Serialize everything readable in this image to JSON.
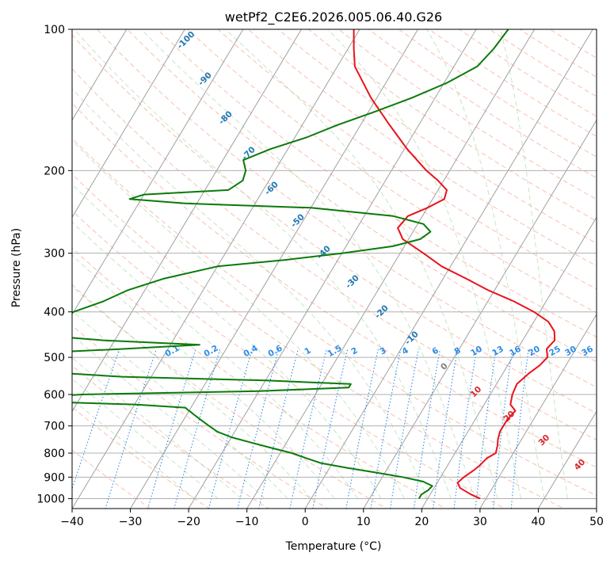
{
  "chart_data": {
    "type": "line",
    "subtype": "skew-t log-p diagram",
    "title": "wetPf2_C2E6.2026.005.06.40.G26",
    "xlabel": "Temperature (°C)",
    "ylabel": "Pressure (hPa)",
    "xlim": [
      -40,
      50
    ],
    "ylim": [
      1050,
      100
    ],
    "x_ticks": [
      -40,
      -30,
      -20,
      -10,
      0,
      10,
      20,
      30,
      40,
      50
    ],
    "x_tick_labels": [
      "−40",
      "−30",
      "−20",
      "−10",
      "0",
      "10",
      "20",
      "30",
      "40",
      "50"
    ],
    "y_ticks": [
      100,
      200,
      300,
      400,
      500,
      600,
      700,
      800,
      900,
      1000
    ],
    "y_tick_labels": [
      "100",
      "200",
      "300",
      "400",
      "500",
      "600",
      "700",
      "800",
      "900",
      "1000"
    ],
    "grid": true,
    "colors": {
      "temperature": "#e8141c",
      "dewpoint": "#0b7a0b",
      "dry_adiabat": "#f5a58c",
      "moist_adiabat": "#a5d2a0",
      "mixing_ratio": "#2d8ce6",
      "isotherm": "#a0a0a0",
      "isotherm_label_cold": "#1f77b4",
      "isotherm_label_warm": "#d62728",
      "isotherm_label_zero": "#7f7f7f",
      "mixing_label": "#2d8ce6"
    },
    "series": [
      {
        "name": "Temperature",
        "pressure": [
          1000,
          980,
          950,
          925,
          900,
          870,
          850,
          820,
          800,
          770,
          750,
          720,
          700,
          680,
          650,
          630,
          600,
          570,
          540,
          520,
          500,
          480,
          460,
          440,
          420,
          400,
          380,
          360,
          340,
          320,
          300,
          280,
          265,
          250,
          240,
          230,
          220,
          210,
          200,
          180,
          160,
          140,
          120,
          110,
          100
        ],
        "values": [
          29,
          27,
          24.5,
          23.5,
          24,
          25,
          25.5,
          26,
          27,
          26.5,
          26,
          25.5,
          25.5,
          25.5,
          26,
          24.5,
          23.8,
          23.5,
          24.5,
          25.5,
          26,
          25,
          25.5,
          24.5,
          22.5,
          19,
          14.5,
          9,
          4,
          -1.5,
          -6,
          -11,
          -13,
          -12.5,
          -10,
          -8,
          -8.5,
          -11,
          -14,
          -19.5,
          -25,
          -31,
          -37,
          -39,
          -41
        ]
      },
      {
        "name": "Dewpoint",
        "pressure": [
          1000,
          980,
          960,
          940,
          920,
          900,
          880,
          860,
          840,
          820,
          800,
          780,
          760,
          740,
          720,
          700,
          680,
          660,
          640,
          630,
          620,
          610,
          600,
          590,
          580,
          570,
          560,
          550,
          540,
          530,
          520,
          510,
          500,
          490,
          480,
          470,
          460,
          450,
          440,
          430,
          420,
          410,
          400,
          380,
          360,
          340,
          320,
          310,
          300,
          290,
          280,
          270,
          260,
          250,
          240,
          235,
          230,
          225,
          220,
          210,
          200,
          190,
          180,
          170,
          160,
          150,
          140,
          130,
          120,
          110,
          100
        ],
        "values": [
          18.5,
          18.5,
          19.2,
          19.5,
          17.5,
          13.5,
          8.5,
          3,
          -2,
          -5,
          -8,
          -12,
          -16,
          -20,
          -23,
          -25,
          -27,
          -29,
          -31,
          -40,
          -60,
          -60,
          -50,
          -20,
          -5,
          -5,
          -20,
          -45,
          -56,
          -60,
          -64,
          -66,
          -66,
          -63,
          -48,
          -35,
          -52,
          -62,
          -63,
          -62.5,
          -62,
          -61,
          -60,
          -56,
          -53,
          -48,
          -40,
          -29,
          -20,
          -12,
          -8,
          -7,
          -9,
          -15,
          -30,
          -52,
          -62,
          -60,
          -46,
          -44.5,
          -45,
          -46.5,
          -43,
          -38,
          -34,
          -29,
          -24,
          -19.5,
          -16,
          -15,
          -14.5
        ]
      }
    ],
    "isotherm_labels": [
      "-100",
      "-90",
      "-80",
      "-70",
      "-60",
      "-50",
      "-40",
      "-30",
      "-20",
      "-10",
      "0",
      "10",
      "20",
      "30",
      "40"
    ],
    "mixing_ratio_labels": [
      "0.1",
      "0.2",
      "0.4",
      "0.6",
      "1",
      "1.5",
      "2",
      "3",
      "4",
      "6",
      "8",
      "10",
      "13",
      "16",
      "20",
      "25",
      "30",
      "36"
    ]
  }
}
